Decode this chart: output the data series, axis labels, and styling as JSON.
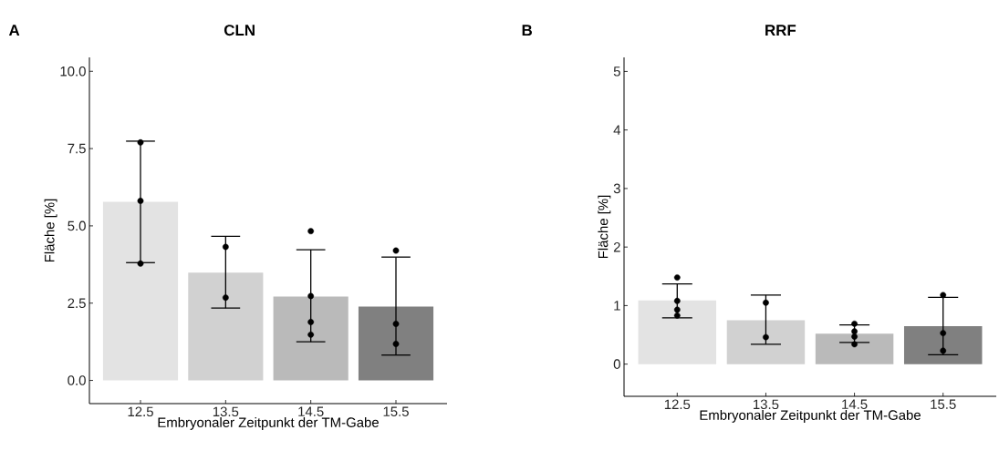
{
  "chart_data": [
    {
      "type": "bar",
      "title": "CLN",
      "annotations": [
        "A"
      ],
      "xlabel": "Embryonaler Zeitpunkt der TM-Gabe",
      "ylabel": "Fläche [%]",
      "categories": [
        "12.5",
        "13.5",
        "14.5",
        "15.5"
      ],
      "ylim": [
        -0.75,
        10.45
      ],
      "marker": "circle",
      "yticks": [
        {
          "value": 0,
          "label": "0.0"
        },
        {
          "value": 2.5,
          "label": "2.5"
        },
        {
          "value": 5,
          "label": "5.0"
        },
        {
          "value": 7.5,
          "label": "7.5"
        },
        {
          "value": 10,
          "label": "10.0"
        }
      ],
      "series": [
        {
          "colors": [
            "#e3e3e3",
            "#d1d1d1",
            "#bababa",
            "#808080"
          ],
          "values": [
            5.78,
            3.49,
            2.71,
            2.39
          ],
          "errors": [
            [
              3.81,
              7.74
            ],
            [
              2.34,
              4.66
            ],
            [
              1.25,
              4.23
            ],
            [
              0.82,
              3.99
            ]
          ]
        },
        {
          "type": "scatter",
          "color": "#000000",
          "x": [
            "12.5",
            "12.5",
            "12.5",
            "13.5",
            "13.5",
            "14.5",
            "14.5",
            "14.5",
            "14.5",
            "15.5",
            "15.5",
            "15.5"
          ],
          "values": [
            7.7,
            5.81,
            3.78,
            4.32,
            2.68,
            4.83,
            2.73,
            1.89,
            1.48,
            4.2,
            1.83,
            1.18
          ]
        }
      ]
    },
    {
      "type": "bar",
      "title": "RRF",
      "annotations": [
        "B"
      ],
      "xlabel": "Embryonaler Zeitpunkt der TM-Gabe",
      "ylabel": "Fläche [%]",
      "categories": [
        "12.5",
        "13.5",
        "14.5",
        "15.5"
      ],
      "ylim": [
        -0.55,
        5.24
      ],
      "marker": "circle",
      "yticks": [
        0,
        1,
        2,
        3,
        4,
        5
      ],
      "series": [
        {
          "colors": [
            "#e3e3e3",
            "#d1d1d1",
            "#bababa",
            "#808080"
          ],
          "values": [
            1.09,
            0.75,
            0.52,
            0.65
          ],
          "errors": [
            [
              0.79,
              1.37
            ],
            [
              0.34,
              1.18
            ],
            [
              0.37,
              0.67
            ],
            [
              0.16,
              1.14
            ]
          ]
        },
        {
          "type": "scatter",
          "color": "#000000",
          "x": [
            "12.5",
            "12.5",
            "12.5",
            "12.5",
            "13.5",
            "13.5",
            "14.5",
            "14.5",
            "14.5",
            "14.5",
            "15.5",
            "15.5",
            "15.5"
          ],
          "values": [
            1.48,
            1.08,
            0.93,
            0.83,
            1.05,
            0.46,
            0.69,
            0.56,
            0.47,
            0.34,
            1.18,
            0.53,
            0.23
          ]
        }
      ]
    }
  ]
}
